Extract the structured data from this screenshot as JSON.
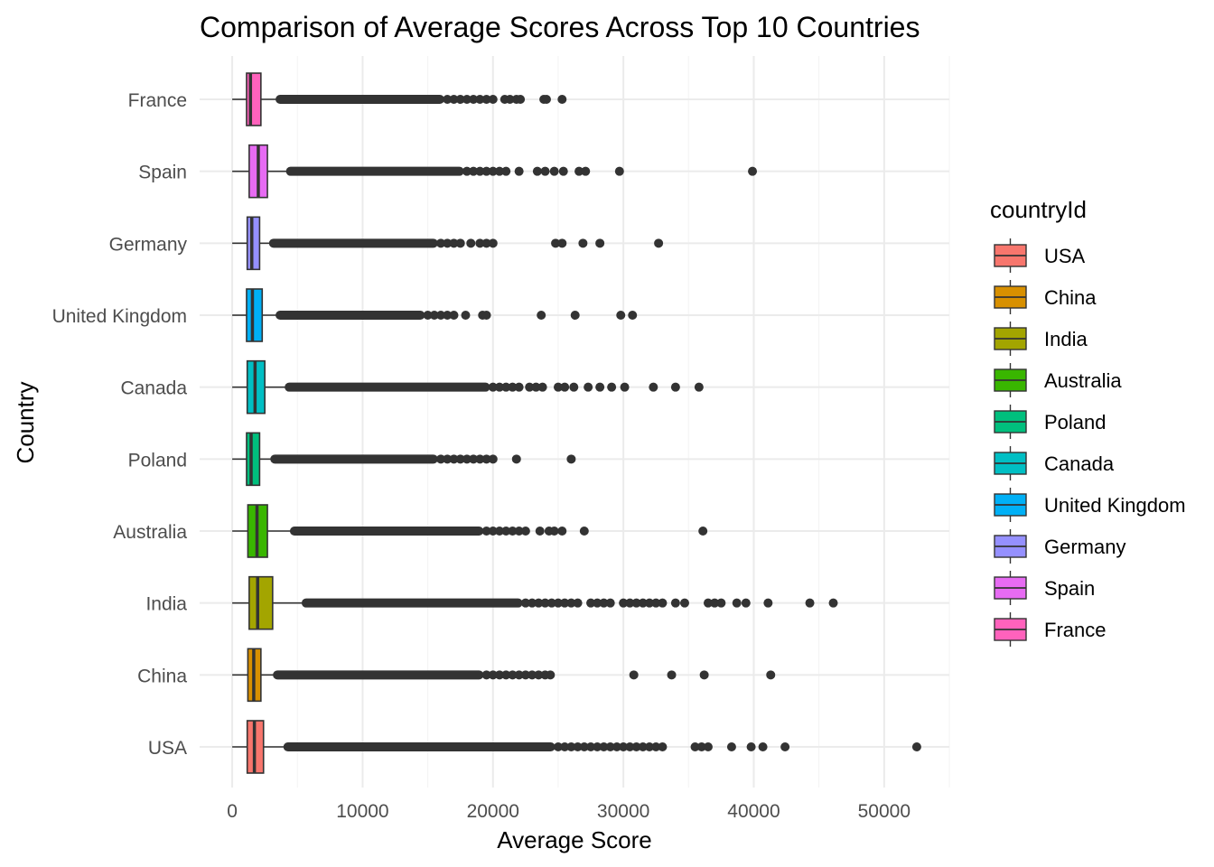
{
  "chart_data": {
    "type": "boxplot",
    "orientation": "horizontal",
    "title": "Comparison of Average Scores Across Top 10 Countries",
    "xlabel": "Average Score",
    "ylabel": "Country",
    "xlim": [
      -2500,
      55000
    ],
    "x_ticks": [
      0,
      10000,
      20000,
      30000,
      40000,
      50000
    ],
    "x_tick_labels": [
      "0",
      "10000",
      "20000",
      "30000",
      "40000",
      "50000"
    ],
    "grid": true,
    "legend": {
      "title": "countryId",
      "placement": "right"
    },
    "categories": [
      "USA",
      "China",
      "India",
      "Australia",
      "Poland",
      "Canada",
      "United Kingdom",
      "Germany",
      "Spain",
      "France"
    ],
    "series": [
      {
        "name": "USA",
        "color": "#F8766D",
        "whisker_low": 0,
        "q1": 1150,
        "median": 1700,
        "q3": 2400,
        "whisker_high": 4100,
        "outlier_dense_range": [
          4200,
          24500
        ],
        "outliers": [
          25000,
          25500,
          26000,
          26500,
          27000,
          27500,
          28000,
          28500,
          29000,
          29500,
          30000,
          30500,
          31000,
          31500,
          32000,
          32500,
          33000,
          35500,
          36000,
          36500,
          38300,
          39800,
          40700,
          42400,
          52500
        ]
      },
      {
        "name": "China",
        "color": "#D89000",
        "whisker_low": 0,
        "q1": 1200,
        "median": 1650,
        "q3": 2200,
        "whisker_high": 3300,
        "outlier_dense_range": [
          3400,
          19000
        ],
        "outliers": [
          19500,
          20000,
          20500,
          21000,
          21500,
          22000,
          22500,
          23000,
          23500,
          24000,
          24400,
          30800,
          33700,
          36200,
          41300
        ]
      },
      {
        "name": "India",
        "color": "#A3A500",
        "whisker_low": 0,
        "q1": 1300,
        "median": 1950,
        "q3": 3100,
        "whisker_high": 5500,
        "outlier_dense_range": [
          5600,
          22000
        ],
        "outliers": [
          22500,
          23000,
          23500,
          24000,
          24500,
          25000,
          25500,
          26000,
          26500,
          27500,
          28000,
          28500,
          29000,
          30000,
          30500,
          31000,
          31500,
          32000,
          32500,
          33000,
          34000,
          34700,
          36500,
          37000,
          37500,
          38700,
          39400,
          41100,
          44300,
          46100
        ]
      },
      {
        "name": "Australia",
        "color": "#39B600",
        "whisker_low": 0,
        "q1": 1200,
        "median": 1900,
        "q3": 2700,
        "whisker_high": 4600,
        "outlier_dense_range": [
          4700,
          19000
        ],
        "outliers": [
          19500,
          20000,
          20500,
          21000,
          21500,
          22000,
          22500,
          23600,
          24300,
          24700,
          25300,
          27000,
          36100
        ]
      },
      {
        "name": "Poland",
        "color": "#00BF7D",
        "whisker_low": 0,
        "q1": 1100,
        "median": 1450,
        "q3": 2100,
        "whisker_high": 3100,
        "outlier_dense_range": [
          3200,
          15500
        ],
        "outliers": [
          16000,
          16500,
          17000,
          17500,
          18000,
          18500,
          19000,
          19500,
          20000,
          21800,
          26000
        ]
      },
      {
        "name": "Canada",
        "color": "#00BFC4",
        "whisker_low": 0,
        "q1": 1150,
        "median": 1750,
        "q3": 2500,
        "whisker_high": 4200,
        "outlier_dense_range": [
          4300,
          19500
        ],
        "outliers": [
          20000,
          20500,
          21000,
          21500,
          22000,
          22800,
          23300,
          23800,
          25000,
          25500,
          26200,
          27300,
          28200,
          29100,
          30100,
          32300,
          34000,
          35800
        ]
      },
      {
        "name": "United Kingdom",
        "color": "#00B0F6",
        "whisker_low": 0,
        "q1": 1100,
        "median": 1550,
        "q3": 2300,
        "whisker_high": 3500,
        "outlier_dense_range": [
          3600,
          14500
        ],
        "outliers": [
          15000,
          15500,
          16000,
          16500,
          17000,
          17900,
          19200,
          19500,
          23700,
          26300,
          29800,
          30700
        ]
      },
      {
        "name": "Germany",
        "color": "#9590FF",
        "whisker_low": 0,
        "q1": 1150,
        "median": 1500,
        "q3": 2100,
        "whisker_high": 3000,
        "outlier_dense_range": [
          3100,
          15500
        ],
        "outliers": [
          16000,
          16500,
          17000,
          17500,
          18300,
          19000,
          19500,
          20000,
          24800,
          25300,
          26900,
          28200,
          32700
        ]
      },
      {
        "name": "Spain",
        "color": "#E76BF3",
        "whisker_low": 0,
        "q1": 1300,
        "median": 2000,
        "q3": 2700,
        "whisker_high": 4300,
        "outlier_dense_range": [
          4400,
          17500
        ],
        "outliers": [
          18000,
          18500,
          19000,
          19500,
          20000,
          20500,
          21000,
          22000,
          23400,
          24000,
          24700,
          25400,
          26600,
          27100,
          29700,
          39900
        ]
      },
      {
        "name": "France",
        "color": "#FF62BC",
        "whisker_low": 0,
        "q1": 1100,
        "median": 1400,
        "q3": 2200,
        "whisker_high": 3500,
        "outlier_dense_range": [
          3600,
          16000
        ],
        "outliers": [
          16500,
          17000,
          17500,
          18000,
          18500,
          19000,
          19500,
          20000,
          20900,
          21300,
          21800,
          22100,
          23900,
          24100,
          25300
        ]
      }
    ]
  }
}
